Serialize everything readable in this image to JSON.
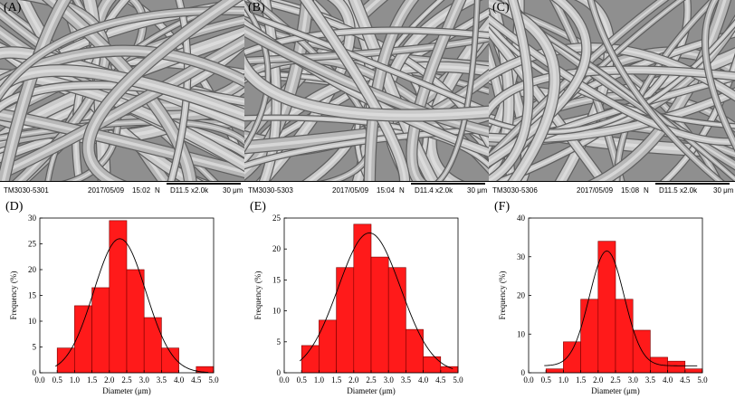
{
  "sem_panels": [
    {
      "label": "(A)",
      "instrument": "TM3030-5301",
      "date": "2017/05/09",
      "time": "15:02",
      "mode": "N",
      "settings": "D11.5 x2.0k",
      "scale": "30 μm"
    },
    {
      "label": "(B)",
      "instrument": "TM3030-5303",
      "date": "2017/05/09",
      "time": "15:04",
      "mode": "N",
      "settings": "D11.4 x2.0k",
      "scale": "30 μm"
    },
    {
      "label": "(C)",
      "instrument": "TM3030-5306",
      "date": "2017/05/09",
      "time": "15:08",
      "mode": "N",
      "settings": "D11.5 x2.0k",
      "scale": "30 μm"
    }
  ],
  "colors": {
    "bar": "#ff1a1a",
    "bar_stroke": "#7a0000",
    "fit_curve": "#000000",
    "sem_background": "#9b9b9b"
  },
  "chart_data": [
    {
      "panel": "(D)",
      "type": "bar",
      "xlabel": "Diameter (μm)",
      "ylabel": "Frequency (%)",
      "xlim": [
        0.0,
        5.0
      ],
      "ylim": [
        0,
        30
      ],
      "xticks": [
        "0.0",
        "0.5",
        "1.0",
        "1.5",
        "2.0",
        "2.5",
        "3.0",
        "3.5",
        "4.0",
        "4.5",
        "5.0"
      ],
      "yticks": [
        "0",
        "5",
        "10",
        "15",
        "20",
        "25",
        "30"
      ],
      "bins": [
        0.75,
        1.25,
        1.75,
        2.25,
        2.75,
        3.25,
        3.75,
        4.25,
        4.75
      ],
      "values": [
        4.8,
        13.0,
        16.5,
        29.5,
        20.0,
        10.7,
        4.8,
        0,
        1.2
      ],
      "fit": {
        "type": "gaussian",
        "mean": 2.3,
        "sd": 0.75,
        "peak": 26.0
      }
    },
    {
      "panel": "(E)",
      "type": "bar",
      "xlabel": "Diameter (μm)",
      "ylabel": "Frequency (%)",
      "xlim": [
        0.0,
        5.0
      ],
      "ylim": [
        0,
        25
      ],
      "xticks": [
        "0.0",
        "0.5",
        "1.0",
        "1.5",
        "2.0",
        "2.5",
        "3.0",
        "3.5",
        "4.0",
        "4.5",
        "5.0"
      ],
      "yticks": [
        "0",
        "5",
        "10",
        "15",
        "20",
        "25"
      ],
      "bins": [
        0.75,
        1.25,
        1.75,
        2.25,
        2.75,
        3.25,
        3.75,
        4.25,
        4.75
      ],
      "values": [
        4.4,
        8.5,
        17.0,
        24.0,
        18.7,
        17.0,
        7.0,
        2.6,
        1.0
      ],
      "fit": {
        "type": "gaussian",
        "mean": 2.45,
        "sd": 0.9,
        "peak": 22.6
      }
    },
    {
      "panel": "(F)",
      "type": "bar",
      "xlabel": "Diameter (μm)",
      "ylabel": "Frequency (%)",
      "xlim": [
        0.0,
        5.0
      ],
      "ylim": [
        0,
        40
      ],
      "xticks": [
        "0.0",
        "0.5",
        "1.0",
        "1.5",
        "2.0",
        "2.5",
        "3.0",
        "3.5",
        "4.0",
        "4.5",
        "5.0"
      ],
      "yticks": [
        "0",
        "10",
        "20",
        "30",
        "40"
      ],
      "bins": [
        0.75,
        1.25,
        1.75,
        2.25,
        2.75,
        3.25,
        3.75,
        4.25,
        4.75
      ],
      "values": [
        1.0,
        8.0,
        19.0,
        34.0,
        19.0,
        11.0,
        4.0,
        3.0,
        1.0
      ],
      "fit": {
        "type": "gaussian",
        "mean": 2.25,
        "sd": 0.5,
        "peak": 31.5,
        "baseline": 1.8
      }
    }
  ]
}
